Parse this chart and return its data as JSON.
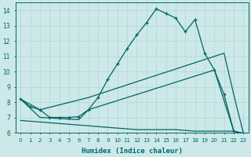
{
  "xlabel": "Humidex (Indice chaleur)",
  "bg_color": "#cce8e8",
  "grid_color": "#aacccc",
  "line_color": "#006666",
  "xlim": [
    -0.5,
    23.5
  ],
  "ylim": [
    6,
    14.5
  ],
  "xtick_labels": [
    "0",
    "1",
    "2",
    "3",
    "4",
    "5",
    "6",
    "7",
    "8",
    "9",
    "10",
    "11",
    "12",
    "13",
    "14",
    "15",
    "16",
    "17",
    "18",
    "19",
    "20",
    "21",
    "22",
    "23"
  ],
  "ytick_vals": [
    6,
    7,
    8,
    9,
    10,
    11,
    12,
    13,
    14
  ],
  "line1_x": [
    0,
    1,
    2,
    3,
    4,
    5,
    6,
    7,
    8,
    9,
    10,
    11,
    12,
    13,
    14,
    15,
    16,
    17,
    18,
    19,
    20,
    21,
    22,
    23
  ],
  "line1_y": [
    8.2,
    7.7,
    7.5,
    7.0,
    7.0,
    7.0,
    7.05,
    7.5,
    8.3,
    9.5,
    10.5,
    11.5,
    12.4,
    13.2,
    14.1,
    13.8,
    13.5,
    12.6,
    13.4,
    11.2,
    10.1,
    8.5,
    6.1,
    5.95
  ],
  "line2_x": [
    0,
    2,
    7,
    21,
    22,
    23
  ],
  "line2_y": [
    8.2,
    7.5,
    8.3,
    11.2,
    8.5,
    5.95
  ],
  "line3_x": [
    0,
    2,
    6,
    7,
    20,
    22,
    23
  ],
  "line3_y": [
    8.2,
    7.0,
    6.85,
    7.5,
    10.1,
    6.1,
    5.95
  ],
  "line4_x": [
    0,
    1,
    2,
    3,
    4,
    5,
    6,
    7,
    8,
    9,
    10,
    11,
    12,
    13,
    14,
    15,
    16,
    17,
    18,
    19,
    20,
    21,
    22,
    23
  ],
  "line4_y": [
    6.8,
    6.75,
    6.7,
    6.65,
    6.6,
    6.55,
    6.5,
    6.45,
    6.4,
    6.35,
    6.3,
    6.25,
    6.2,
    6.2,
    6.2,
    6.2,
    6.2,
    6.15,
    6.1,
    6.1,
    6.1,
    6.1,
    6.1,
    5.95
  ]
}
